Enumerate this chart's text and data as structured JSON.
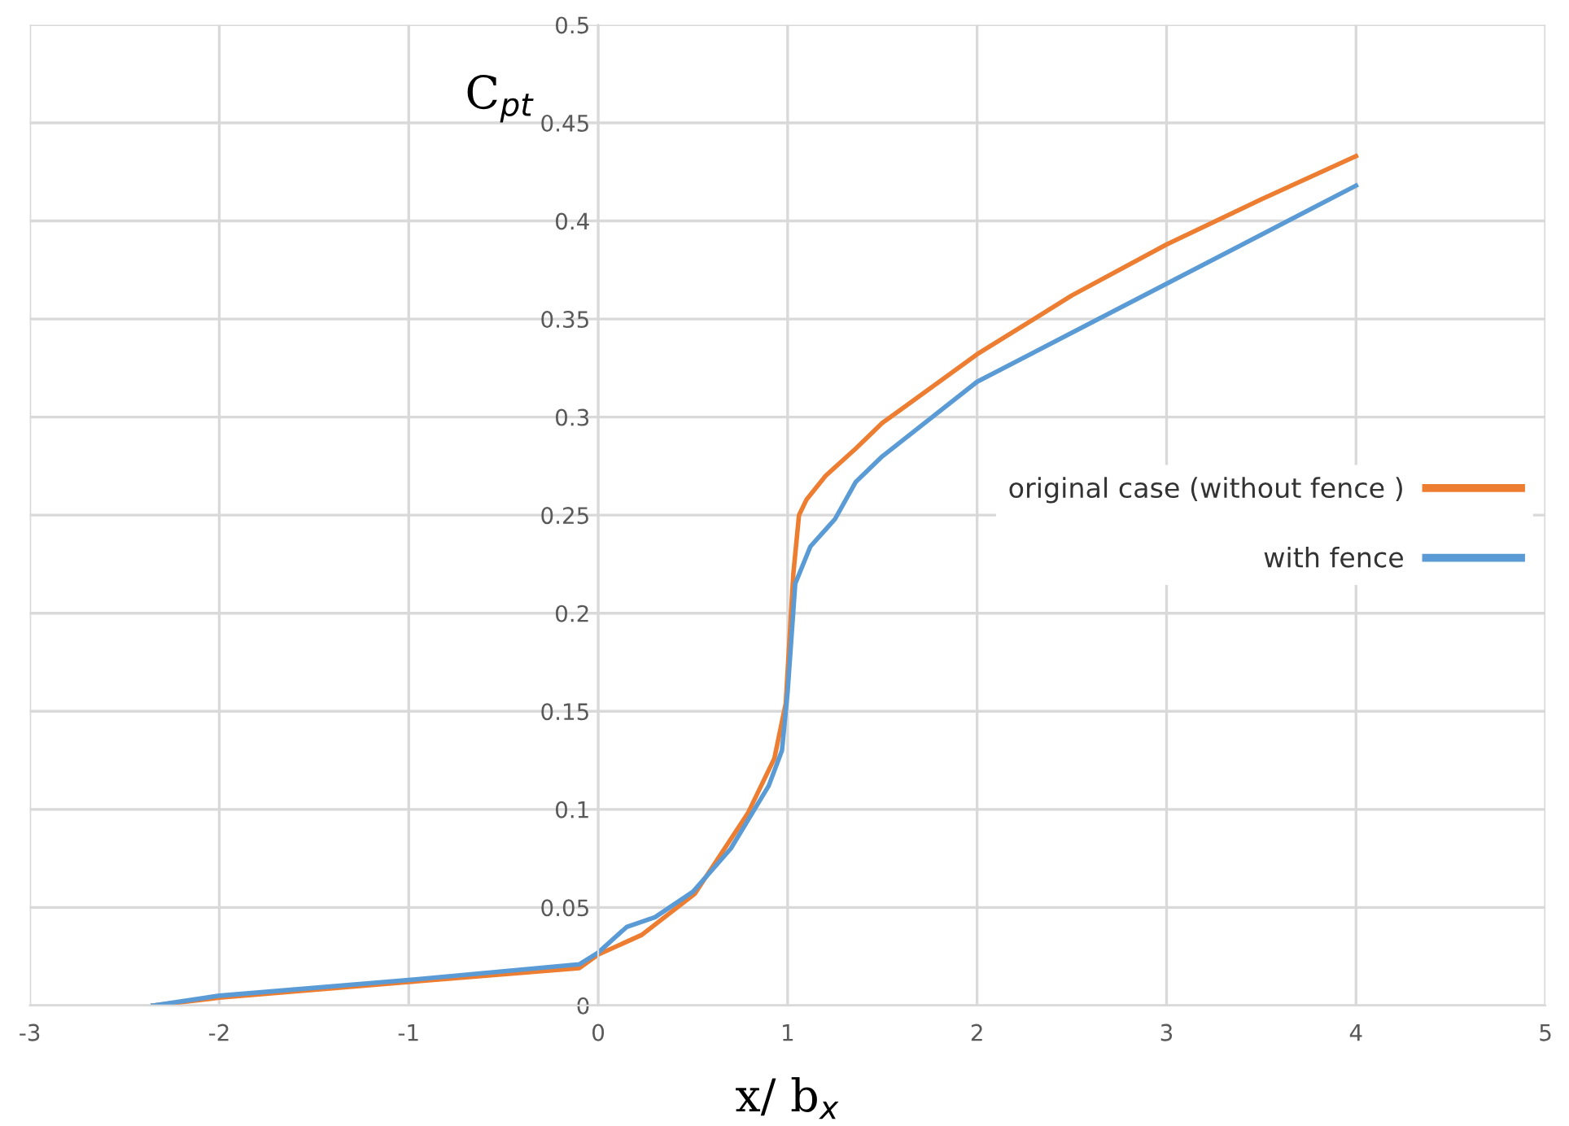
{
  "chart_data": {
    "type": "line",
    "xlabel": "x/ b$_{x}$",
    "ylabel": "C$_{pt}$",
    "xlim": [
      -3,
      5
    ],
    "xticks": [
      -3,
      -2,
      -1,
      0,
      1,
      2,
      3,
      4,
      5
    ],
    "ylim": [
      0,
      0.5
    ],
    "yticks": [
      0,
      0.05,
      0.1,
      0.15,
      0.2,
      0.25,
      0.3,
      0.35,
      0.4,
      0.45,
      0.5
    ],
    "grid": true,
    "legend": "right",
    "marker": "none",
    "line_style": "solid",
    "series": [
      {
        "name": "original case (without fence )",
        "color": "#ed7d31",
        "x": [
          -2.35,
          -2,
          -1,
          -0.1,
          0,
          0.23,
          0.51,
          0.79,
          0.93,
          0.99,
          1.03,
          1.06,
          1.1,
          1.2,
          1.36,
          1.5,
          2,
          2.5,
          3,
          3.5,
          4
        ],
        "values": [
          0,
          0.004,
          0.012,
          0.019,
          0.026,
          0.036,
          0.057,
          0.098,
          0.126,
          0.154,
          0.22,
          0.25,
          0.258,
          0.27,
          0.284,
          0.297,
          0.332,
          0.362,
          0.388,
          0.411,
          0.433
        ]
      },
      {
        "name": "with fence",
        "color": "#5b9bd5",
        "x": [
          -2.35,
          -2,
          -1,
          -0.1,
          0,
          0.15,
          0.3,
          0.5,
          0.7,
          0.9,
          0.97,
          1.0,
          1.04,
          1.12,
          1.25,
          1.36,
          1.5,
          2,
          2.5,
          3,
          3.5,
          4
        ],
        "values": [
          0,
          0.005,
          0.013,
          0.021,
          0.027,
          0.04,
          0.045,
          0.058,
          0.08,
          0.112,
          0.13,
          0.16,
          0.215,
          0.234,
          0.248,
          0.267,
          0.28,
          0.318,
          0.343,
          0.368,
          0.393,
          0.418
        ]
      }
    ]
  }
}
